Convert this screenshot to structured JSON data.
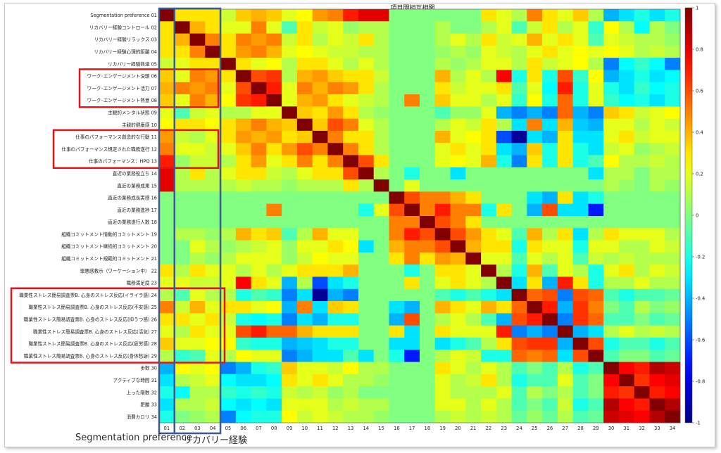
{
  "chart_data": {
    "type": "heatmap",
    "title": "項目間相互相関",
    "row_labels": [
      "Segmentation preference 01",
      "リカバリー経験コントロール 02",
      "リカバリー経験リラックス 03",
      "リカバリー経験心理的距離 04",
      "リカバリー経験熟達 05",
      "ワーク･エンゲージメント没頭 06",
      "ワーク･エンゲージメント活力 07",
      "ワーク･エンゲージメント熱意 08",
      "主観的メンタル状態 09",
      "主観的健康感 10",
      "仕事のパフォーマンス創造的な行動 11",
      "仕事のパフォーマンス規定された職務遂行 12",
      "仕事のパフォーマンス：HPQ 13",
      "直近の業務役立ち 14",
      "直近の業務成果 15",
      "直近の業務成長実感 16",
      "直近の業務進捗 17",
      "直近の業務遂行人数 18",
      "組織コミットメント情動的コミットメント 19",
      "組織コミットメント継続的コミットメント 20",
      "組織コミットメント規範的コミットメント 21",
      "罪悪感救示（ワーケーション中） 22",
      "職務満足度 23",
      "職業性ストレス簡易調査票B. 心身のストレス反応(イライラ感) 24",
      "職業性ストレス簡易調査票B. 心身のストレス反応(不安感) 25",
      "職業性ストレス簡易調査票B. 心身のストレス反応(抑うつ感) 26",
      "職業性ストレス簡易調査票B. 心身のストレス反応(活気) 27",
      "職業性ストレス簡易調査票B. 心身のストレス反応(疲労感) 28",
      "職業性ストレス簡易調査票B. 心身のストレス反応(身体愁訴) 29",
      "歩数 30",
      "アクティブな時間 31",
      "上った階数 32",
      "距離 33",
      "消費カロリ 34"
    ],
    "col_labels": [
      "01",
      "02",
      "03",
      "04",
      "05",
      "06",
      "07",
      "08",
      "09",
      "10",
      "11",
      "12",
      "13",
      "14",
      "15",
      "16",
      "17",
      "18",
      "19",
      "20",
      "21",
      "22",
      "23",
      "24",
      "25",
      "26",
      "27",
      "28",
      "29",
      "30",
      "31",
      "32",
      "33",
      "34"
    ],
    "colorbar_ticks": [
      "1",
      "0.8",
      "0.6",
      "0.4",
      "0.2",
      "0",
      "-0.2",
      "-0.4",
      "-0.6",
      "-0.8",
      "-1"
    ],
    "vmin": -1,
    "vmax": 1,
    "colormap": "jet",
    "highlight_color": "#e0151b",
    "group_color": "#3c5a8c",
    "groups": [
      "Segmentation preference",
      "リカバリー経験"
    ],
    "matrix": [
      [
        1,
        0.3,
        0.3,
        0.3,
        0.15,
        0.35,
        0.4,
        0.35,
        0.2,
        0.25,
        0.45,
        0.5,
        0.7,
        0.8,
        0.8,
        0,
        0,
        0,
        0,
        0,
        0,
        0.3,
        0.2,
        0.1,
        0.5,
        0.3,
        0.2,
        0.35,
        0.1,
        -0.4,
        -0.3,
        -0.2,
        -0.3,
        -0.2
      ],
      [
        0.3,
        1,
        0.4,
        0.3,
        0.2,
        0.2,
        0.5,
        0.2,
        -0.1,
        0.3,
        0.15,
        0.2,
        0.05,
        0.1,
        0.1,
        0,
        0,
        0,
        0.1,
        0,
        0,
        0.1,
        0.2,
        -0.1,
        0.15,
        0.3,
        0.1,
        0.2,
        -0.15,
        0.25,
        0.1,
        -0.25,
        0.1,
        0
      ],
      [
        0.3,
        0.4,
        1,
        0.5,
        0.3,
        0.5,
        0.45,
        0.5,
        0.15,
        0.3,
        0.1,
        0.2,
        0.15,
        0.3,
        0.1,
        0,
        0,
        0,
        0.1,
        0.2,
        0.1,
        0.3,
        0.15,
        0.2,
        0.4,
        0.2,
        0.3,
        0.2,
        -0.1,
        0.2,
        0.15,
        0.1,
        0.1,
        0.05
      ],
      [
        0.3,
        0.3,
        0.5,
        1,
        0.3,
        0.45,
        0.5,
        0.4,
        0.2,
        0.25,
        0.2,
        0.15,
        0.15,
        0.1,
        0.1,
        0,
        0,
        0,
        0.05,
        0.1,
        0.05,
        0.2,
        0.15,
        0.1,
        0.2,
        0.3,
        0.2,
        0.25,
        0.2,
        0.25,
        0.2,
        0.1,
        0.15,
        0.1
      ],
      [
        0.15,
        0.2,
        0.3,
        0.3,
        1,
        0.3,
        0.2,
        0.25,
        0.1,
        0.3,
        0.3,
        0.2,
        0.1,
        0.2,
        0.1,
        0,
        0,
        0,
        0.1,
        0.05,
        0.1,
        0.2,
        0.2,
        0.1,
        0.3,
        0.15,
        0.2,
        0.25,
        0.1,
        -0.5,
        -0.25,
        -0.15,
        -0.25,
        -0.5
      ],
      [
        0.35,
        0.2,
        0.5,
        0.45,
        0.3,
        1,
        0.6,
        0.65,
        0.1,
        0.4,
        0.45,
        0.35,
        0.3,
        0.3,
        0.15,
        0,
        0,
        0,
        0.4,
        0.1,
        0.2,
        0.1,
        0.75,
        -0.2,
        0.3,
        -0.2,
        0.6,
        -0.15,
        0.25,
        -0.4,
        -0.3,
        -0.2,
        -0.3,
        -0.25
      ],
      [
        0.4,
        0.5,
        0.45,
        0.5,
        0.2,
        0.6,
        1,
        0.7,
        0.2,
        0.5,
        0.4,
        0.5,
        0.45,
        0.3,
        0.1,
        0,
        0,
        0,
        0.3,
        0.15,
        0.2,
        0.2,
        0.3,
        -0.1,
        0.2,
        -0.25,
        0.7,
        -0.2,
        0.2,
        -0.2,
        -0.3,
        -0.15,
        -0.25,
        -0.2
      ],
      [
        0.35,
        0.2,
        0.5,
        0.4,
        0.25,
        0.65,
        0.7,
        1,
        0.2,
        0.4,
        0.45,
        0.3,
        0.2,
        0.15,
        0.1,
        0,
        0.5,
        0,
        0.35,
        0.2,
        0.2,
        0.1,
        0.2,
        -0.15,
        0.25,
        -0.2,
        0.55,
        -0.2,
        0.2,
        -0.15,
        -0.25,
        -0.2,
        -0.3,
        -0.2
      ],
      [
        0.2,
        -0.1,
        0.15,
        0.2,
        0.1,
        0.1,
        0.2,
        0.2,
        1,
        0.35,
        0.3,
        0.45,
        0.3,
        0.1,
        0.05,
        0,
        0,
        0,
        -0.1,
        0.05,
        0.05,
        0.2,
        -0.4,
        -0.5,
        -0.4,
        -0.5,
        0.55,
        -0.4,
        -0.5,
        0.35,
        0.3,
        0.15,
        0.2,
        0.25
      ],
      [
        0.25,
        0.3,
        0.3,
        0.25,
        0.3,
        0.4,
        0.5,
        0.4,
        0.35,
        1,
        0.35,
        0.6,
        0.5,
        0.2,
        0.1,
        0,
        0,
        0,
        0.1,
        0.2,
        0.15,
        0.3,
        0.1,
        -0.3,
        0.5,
        -0.3,
        0.4,
        -0.35,
        -0.4,
        0.2,
        0.2,
        0.1,
        0.2,
        0.15
      ],
      [
        0.45,
        0.15,
        0.1,
        0.2,
        0.3,
        0.45,
        0.4,
        0.45,
        0.3,
        0.35,
        1,
        0.5,
        0.3,
        0.3,
        0.1,
        0,
        0,
        0,
        0.4,
        0.2,
        0.25,
        0.3,
        -0.6,
        -0.95,
        -0.3,
        -0.4,
        0.3,
        -0.3,
        -0.3,
        0.2,
        0.3,
        0.15,
        0.2,
        0.2
      ],
      [
        0.5,
        0.2,
        0.2,
        0.15,
        0.2,
        0.35,
        0.5,
        0.3,
        0.45,
        0.6,
        0.5,
        1,
        0.5,
        0.3,
        0.1,
        0,
        0,
        0,
        0.2,
        0.3,
        0.2,
        0.3,
        -0.3,
        -0.4,
        0.35,
        -0.2,
        0.3,
        -0.2,
        -0.3,
        0.15,
        0.2,
        0.05,
        0.1,
        0.15
      ],
      [
        0.7,
        0.05,
        0.15,
        0.15,
        0.1,
        0.3,
        0.45,
        0.2,
        0.3,
        0.5,
        0.3,
        0.5,
        1,
        0.6,
        0.3,
        0,
        0,
        0,
        0.2,
        0.25,
        0.2,
        0.4,
        -0.2,
        -0.5,
        0.3,
        -0.2,
        0.3,
        -0.2,
        -0.1,
        0.25,
        0.1,
        0.1,
        0.15,
        0.1
      ],
      [
        0.8,
        0.1,
        0.3,
        0.1,
        0.2,
        0.3,
        0.3,
        0.15,
        0.1,
        0.2,
        0.3,
        0.3,
        0.6,
        1,
        0.1,
        0,
        -0.2,
        0,
        0,
        -0.3,
        0,
        0,
        0,
        0,
        0,
        0,
        0,
        0,
        -0.3,
        0.1,
        0.1,
        0,
        0.1,
        0.1
      ],
      [
        0.8,
        0.1,
        0.1,
        0.1,
        0.1,
        0.15,
        0.1,
        0.1,
        0.05,
        0.1,
        0.1,
        0.1,
        0.3,
        0.1,
        1,
        0,
        0.2,
        0,
        0,
        0,
        0,
        0,
        0,
        0,
        0,
        0,
        0,
        0,
        0,
        0.1,
        0.05,
        0,
        0.1,
        0.05
      ],
      [
        0,
        0,
        0,
        0,
        0,
        0,
        0,
        0,
        0,
        0,
        0,
        0,
        0,
        0,
        0,
        1,
        0.6,
        0.5,
        0.5,
        0.4,
        0.3,
        0,
        0,
        0,
        -0.3,
        -0.4,
        0.3,
        -0.3,
        -0.2,
        0,
        0,
        0,
        0,
        0
      ],
      [
        0,
        0,
        0,
        0,
        0,
        0,
        0,
        0.5,
        0,
        0,
        0,
        0,
        0,
        -0.2,
        0.2,
        0.6,
        1,
        0.5,
        0.7,
        0.5,
        0.5,
        -0.2,
        0.3,
        0,
        -0.4,
        0.6,
        -0.3,
        -0.3,
        -0.7,
        0,
        0,
        0,
        0,
        0
      ],
      [
        0,
        0,
        0,
        0,
        0,
        0,
        0,
        0,
        0,
        0,
        0,
        0,
        0,
        0,
        0,
        0.5,
        0.5,
        1,
        0.6,
        0.5,
        0.3,
        0,
        0,
        0,
        0,
        0,
        0,
        0,
        0,
        0,
        0,
        0,
        0,
        0
      ],
      [
        0,
        0.1,
        0.1,
        0.05,
        0.1,
        0.4,
        0.3,
        0.35,
        -0.1,
        0.1,
        0.4,
        0.2,
        0.2,
        0,
        0,
        0.5,
        0.7,
        0.6,
        1,
        0.6,
        0.45,
        0.3,
        0.2,
        -0.1,
        0.4,
        0.1,
        0.3,
        -0.3,
        0.1,
        0.3,
        0.2,
        0.2,
        0.2,
        0.1
      ],
      [
        0,
        0,
        0.2,
        0.1,
        0.05,
        0.1,
        0.15,
        0.2,
        0.05,
        0.2,
        0.2,
        0.3,
        0.25,
        -0.3,
        0,
        0.4,
        0.5,
        0.5,
        0.6,
        1,
        0.4,
        0.3,
        0.3,
        -0.2,
        0.3,
        0.2,
        0.2,
        -0.2,
        0.2,
        0.2,
        0.1,
        0.1,
        0.2,
        0.15
      ],
      [
        0,
        0,
        0.1,
        0.05,
        0.1,
        0.2,
        0.2,
        0.2,
        0.05,
        0.15,
        0.25,
        0.2,
        0.2,
        0,
        0,
        0.3,
        0.5,
        0.3,
        0.45,
        0.4,
        1,
        0.2,
        0.2,
        -0.1,
        0.2,
        0.1,
        0.2,
        -0.1,
        0.15,
        0.1,
        0.15,
        0.1,
        0.1,
        0.1
      ],
      [
        0.3,
        0.1,
        0.3,
        0.2,
        0.2,
        0.1,
        0.2,
        0.1,
        0.2,
        0.3,
        0.3,
        0.3,
        0.4,
        0,
        0,
        0,
        -0.2,
        0,
        0.3,
        0.3,
        0.2,
        1,
        0.1,
        -0.2,
        0.4,
        -0.1,
        0.2,
        0.1,
        -0.2,
        0.2,
        0.3,
        0.1,
        0.2,
        0.15
      ],
      [
        0.2,
        0.2,
        0.15,
        0.15,
        0.2,
        0.75,
        0.3,
        0.2,
        -0.4,
        0.1,
        -0.6,
        -0.3,
        -0.2,
        0,
        0,
        0,
        0.3,
        0,
        0.2,
        0.3,
        0.2,
        0.1,
        1,
        -0.3,
        0.3,
        -0.4,
        0.7,
        0.3,
        -0.2,
        0.1,
        0.1,
        0.2,
        0.1,
        0.1
      ],
      [
        0.1,
        -0.1,
        0.2,
        0.1,
        0.1,
        -0.2,
        -0.1,
        -0.15,
        -0.5,
        -0.3,
        -0.95,
        -0.4,
        -0.5,
        0,
        0,
        0,
        0,
        0,
        -0.1,
        -0.2,
        -0.1,
        -0.2,
        -0.3,
        1,
        0.55,
        0.6,
        -0.5,
        0.6,
        0.55,
        -0.1,
        -0.2,
        -0.1,
        -0.1,
        -0.05
      ],
      [
        0.5,
        0.15,
        0.4,
        0.2,
        0.3,
        0.3,
        0.2,
        0.25,
        -0.4,
        0.5,
        -0.3,
        0.35,
        0.3,
        0,
        0,
        -0.3,
        -0.4,
        0,
        0.4,
        0.3,
        0.2,
        0.4,
        0.3,
        0.55,
        1,
        0.7,
        -0.4,
        0.65,
        0.5,
        0,
        -0.1,
        0.1,
        0,
        0.05
      ],
      [
        0.3,
        0.3,
        0.2,
        0.3,
        0.15,
        -0.2,
        -0.25,
        -0.2,
        -0.5,
        -0.3,
        -0.4,
        -0.2,
        -0.2,
        0,
        0,
        -0.4,
        0.6,
        0,
        0.1,
        0.2,
        0.1,
        -0.1,
        -0.4,
        0.6,
        0.7,
        1,
        -0.5,
        0.65,
        0.55,
        -0.1,
        -0.1,
        0,
        -0.1,
        -0.05
      ],
      [
        0.2,
        0.1,
        0.3,
        0.2,
        0.2,
        0.6,
        0.7,
        0.55,
        0.55,
        0.4,
        0.3,
        0.3,
        0.3,
        0,
        0,
        0.3,
        -0.3,
        0,
        0.3,
        0.2,
        0.2,
        0.2,
        0.7,
        -0.5,
        -0.4,
        -0.5,
        1,
        -0.4,
        -0.3,
        0.1,
        0.2,
        0.1,
        0.15,
        0.1
      ],
      [
        0.35,
        0.2,
        0.2,
        0.25,
        0.25,
        -0.15,
        -0.2,
        -0.2,
        -0.4,
        -0.35,
        -0.3,
        -0.2,
        -0.2,
        0,
        0,
        -0.3,
        -0.3,
        0,
        -0.3,
        -0.2,
        -0.1,
        0.1,
        0.3,
        0.6,
        0.65,
        0.65,
        -0.4,
        1,
        0.6,
        -0.2,
        -0.1,
        -0.1,
        -0.2,
        -0.1
      ],
      [
        0.1,
        -0.15,
        -0.1,
        0.2,
        0.1,
        0.25,
        0.2,
        0.2,
        -0.5,
        -0.4,
        -0.3,
        -0.3,
        -0.1,
        -0.3,
        0,
        -0.2,
        -0.7,
        0,
        0.1,
        0.2,
        0.15,
        -0.2,
        -0.2,
        0.55,
        0.5,
        0.55,
        -0.3,
        0.6,
        1,
        -0.1,
        0,
        0,
        -0.1,
        -0.05
      ],
      [
        -0.4,
        0.25,
        0.2,
        0.25,
        -0.5,
        -0.4,
        -0.2,
        -0.15,
        0.35,
        0.2,
        0.2,
        0.15,
        0.25,
        0.1,
        0.1,
        0,
        0,
        0,
        0.3,
        0.2,
        0.1,
        0.2,
        0.1,
        -0.1,
        0,
        -0.1,
        0.1,
        -0.2,
        -0.1,
        1,
        0.75,
        0.7,
        0.9,
        0.85
      ],
      [
        -0.3,
        0.1,
        0.15,
        0.2,
        -0.25,
        -0.3,
        -0.3,
        -0.25,
        0.3,
        0.2,
        0.3,
        0.2,
        0.1,
        0.1,
        0.05,
        0,
        0,
        0,
        0.2,
        0.1,
        0.15,
        0.3,
        0.1,
        -0.2,
        -0.1,
        -0.1,
        0.2,
        -0.1,
        0,
        0.75,
        1,
        0.65,
        0.75,
        0.8
      ],
      [
        -0.2,
        -0.25,
        0.1,
        0.1,
        -0.15,
        -0.2,
        -0.15,
        -0.2,
        0.15,
        0.1,
        0.15,
        0.05,
        0.1,
        0,
        0,
        0,
        0,
        0,
        0.2,
        0.1,
        0.1,
        0.1,
        0.2,
        -0.1,
        0.1,
        0,
        0.1,
        -0.1,
        0,
        0.7,
        0.65,
        1,
        0.7,
        0.75
      ],
      [
        -0.3,
        0.1,
        0.1,
        0.15,
        -0.25,
        -0.3,
        -0.25,
        -0.3,
        0.2,
        0.2,
        0.2,
        0.1,
        0.15,
        0.1,
        0.1,
        0,
        0,
        0,
        0.2,
        0.2,
        0.1,
        0.2,
        0.1,
        -0.1,
        0,
        -0.1,
        0.15,
        -0.2,
        -0.1,
        0.9,
        0.75,
        0.7,
        1,
        0.9
      ],
      [
        -0.2,
        0,
        0.05,
        0.1,
        -0.5,
        -0.25,
        -0.2,
        -0.2,
        0.25,
        0.15,
        0.2,
        0.15,
        0.1,
        0.1,
        0.05,
        0,
        0,
        0,
        0.1,
        0.15,
        0.1,
        0.15,
        0.1,
        -0.05,
        0.05,
        -0.05,
        0.1,
        -0.1,
        -0.05,
        0.85,
        0.8,
        0.75,
        0.9,
        1
      ]
    ]
  }
}
